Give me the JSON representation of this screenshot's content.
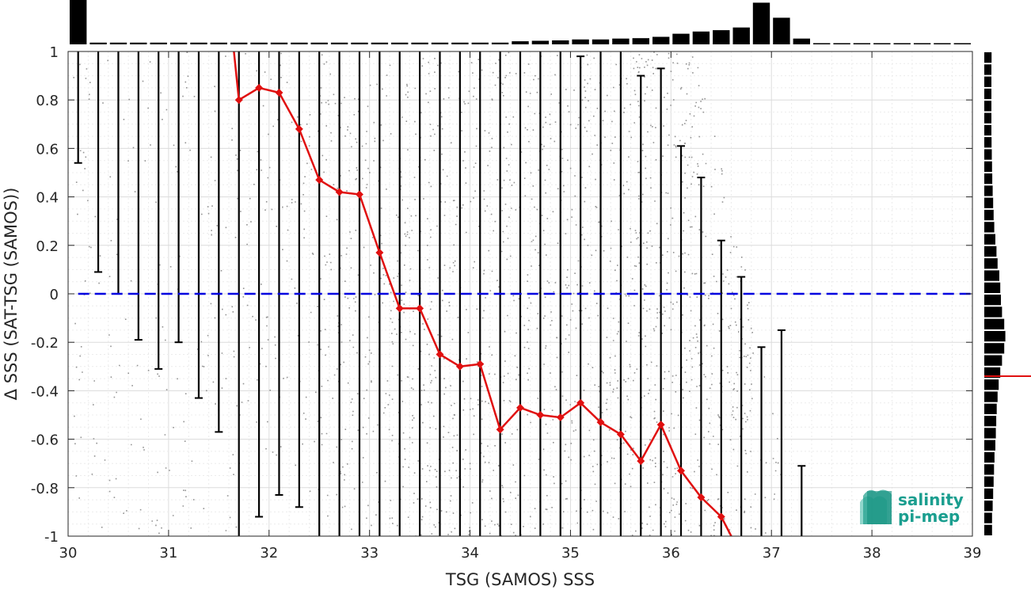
{
  "chart_data": {
    "type": "scatter",
    "title": "",
    "xlabel": "TSG (SAMOS) SSS",
    "ylabel": "Δ SSS (SAT-TSG (SAMOS))",
    "xlim": [
      30,
      39
    ],
    "ylim": [
      -1,
      1
    ],
    "xticks": [
      30,
      31,
      32,
      33,
      34,
      35,
      36,
      37,
      38,
      39
    ],
    "yticks": [
      1,
      0.8,
      0.6,
      0.4,
      0.2,
      0,
      -0.2,
      -0.4,
      -0.6,
      -0.8,
      -1
    ],
    "ytick_labels": [
      "1",
      "0.8",
      "0.6",
      "0.4",
      "0.2",
      "0",
      "-0.2",
      "-0.4",
      "-0.6",
      "-0.8",
      "-1"
    ],
    "grid": true,
    "zero_line": {
      "y": 0,
      "color": "#0000e0",
      "style": "dashed"
    },
    "scatter_color": "#808080",
    "mean_series": {
      "color": "#e01010",
      "x": [
        31.7,
        31.9,
        32.1,
        32.3,
        32.5,
        32.7,
        32.9,
        33.1,
        33.3,
        33.5,
        33.7,
        33.9,
        34.1,
        34.3,
        34.5,
        34.7,
        34.9,
        35.1,
        35.3,
        35.5,
        35.7,
        35.9,
        36.1,
        36.3,
        36.5
      ],
      "y": [
        0.8,
        0.85,
        0.83,
        0.68,
        0.47,
        0.42,
        0.41,
        0.17,
        -0.06,
        -0.06,
        -0.25,
        -0.3,
        -0.29,
        -0.56,
        -0.47,
        -0.5,
        -0.51,
        -0.45,
        -0.53,
        -0.58,
        -0.69,
        -0.54,
        -0.73,
        -0.84,
        -0.92
      ],
      "lead_in": [
        [
          31.65,
          1.0
        ],
        [
          31.7,
          0.8
        ]
      ],
      "lead_out": [
        [
          36.5,
          -0.92
        ],
        [
          36.6,
          -1.0
        ]
      ]
    },
    "error_bars": {
      "color": "#000000",
      "x": [
        30.1,
        30.3,
        30.5,
        30.7,
        30.9,
        31.1,
        31.3,
        31.5,
        31.7,
        31.9,
        32.1,
        32.3,
        32.5,
        32.7,
        32.9,
        33.1,
        33.3,
        33.5,
        33.7,
        33.9,
        34.1,
        34.3,
        34.5,
        34.7,
        34.9,
        35.1,
        35.3,
        35.5,
        35.7,
        35.9,
        36.1,
        36.3,
        36.5,
        36.7,
        36.9,
        37.1,
        37.3
      ],
      "low": [
        0.54,
        0.09,
        0.0,
        -0.19,
        -0.31,
        -0.2,
        -0.43,
        -0.57,
        -1.0,
        -0.92,
        -0.83,
        -0.88,
        -1.0,
        -1.0,
        -1.0,
        -1.0,
        -1.0,
        -1.0,
        -1.0,
        -1.0,
        -1.0,
        -1.0,
        -1.0,
        -1.0,
        -1.0,
        -1.0,
        -1.0,
        -1.0,
        -1.0,
        -1.0,
        -1.0,
        -1.0,
        -1.0,
        -1.0,
        -1.0,
        -1.0,
        -1.0
      ],
      "high": [
        1.0,
        1.0,
        1.0,
        1.0,
        1.0,
        1.0,
        1.0,
        1.0,
        1.0,
        1.0,
        1.0,
        1.0,
        1.0,
        1.0,
        1.0,
        1.0,
        1.0,
        1.0,
        1.0,
        1.0,
        1.0,
        1.0,
        1.0,
        1.0,
        1.0,
        0.98,
        1.0,
        1.0,
        0.9,
        0.93,
        0.61,
        0.48,
        0.22,
        0.07,
        -0.22,
        -0.15,
        -0.71
      ]
    },
    "top_histogram": {
      "color": "#000000",
      "bin_start": 30.0,
      "bin_width": 0.2,
      "relative_counts": [
        1.0,
        0.04,
        0.04,
        0.04,
        0.04,
        0.04,
        0.04,
        0.04,
        0.04,
        0.04,
        0.04,
        0.04,
        0.04,
        0.04,
        0.04,
        0.04,
        0.04,
        0.04,
        0.04,
        0.04,
        0.04,
        0.04,
        0.07,
        0.08,
        0.09,
        0.11,
        0.11,
        0.13,
        0.14,
        0.17,
        0.24,
        0.29,
        0.32,
        0.38,
        0.94,
        0.6,
        0.13,
        0.02,
        0.01,
        0.01,
        0.01,
        0.01,
        0.01,
        0.01,
        0.01
      ]
    },
    "right_histogram": {
      "color": "#000000",
      "mean_marker": {
        "y": -0.34,
        "color": "#e01010"
      },
      "bin_start": -1.0,
      "bin_width": 0.05,
      "relative_counts": [
        0.35,
        0.35,
        0.38,
        0.4,
        0.42,
        0.44,
        0.46,
        0.5,
        0.52,
        0.54,
        0.56,
        0.6,
        0.65,
        0.72,
        0.8,
        0.9,
        0.95,
        0.9,
        0.8,
        0.75,
        0.72,
        0.68,
        0.6,
        0.55,
        0.5,
        0.45,
        0.42,
        0.4,
        0.38,
        0.36,
        0.35,
        0.34,
        0.33,
        0.32,
        0.32,
        0.32,
        0.32,
        0.32,
        0.32,
        0.33
      ]
    },
    "logo": {
      "line1": "salinity",
      "line2": "pi-mep"
    }
  }
}
